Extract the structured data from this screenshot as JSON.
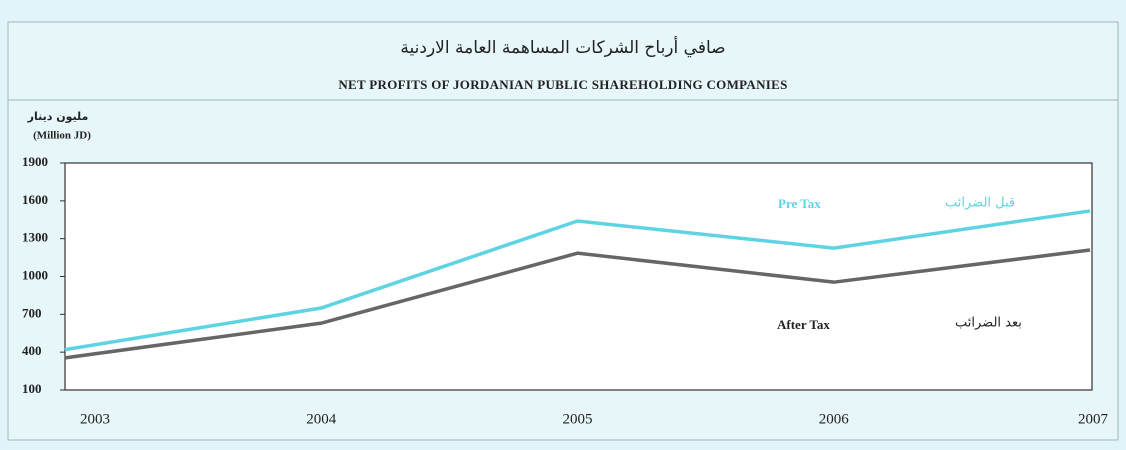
{
  "chart_data": {
    "type": "line",
    "title": "صافي أرباح الشركات المساهمة العامة الاردنية",
    "subtitle": "NET PROFITS OF JORDANIAN PUBLIC SHAREHOLDING COMPANIES",
    "y_label": "مليون دينار",
    "y_unit": "(Million JD)",
    "x": [
      2003,
      2004,
      2005,
      2006,
      2007
    ],
    "xlim": [
      2003,
      2007
    ],
    "xticks": [
      2003,
      2004,
      2005,
      2006,
      2007
    ],
    "ylim": [
      100,
      1900
    ],
    "yticks": [
      100,
      400,
      700,
      1000,
      1300,
      1600,
      1900
    ],
    "series": [
      {
        "name": "Pre Tax",
        "color": "#5ed4e2",
        "values": [
          420,
          750,
          1440,
          1225,
          1520
        ]
      },
      {
        "name": "After Tax",
        "color": "#666666",
        "values": [
          355,
          630,
          1185,
          955,
          1210
        ]
      }
    ],
    "annotations": [
      "قبل الضرائب",
      "بعد الضرائب"
    ]
  }
}
